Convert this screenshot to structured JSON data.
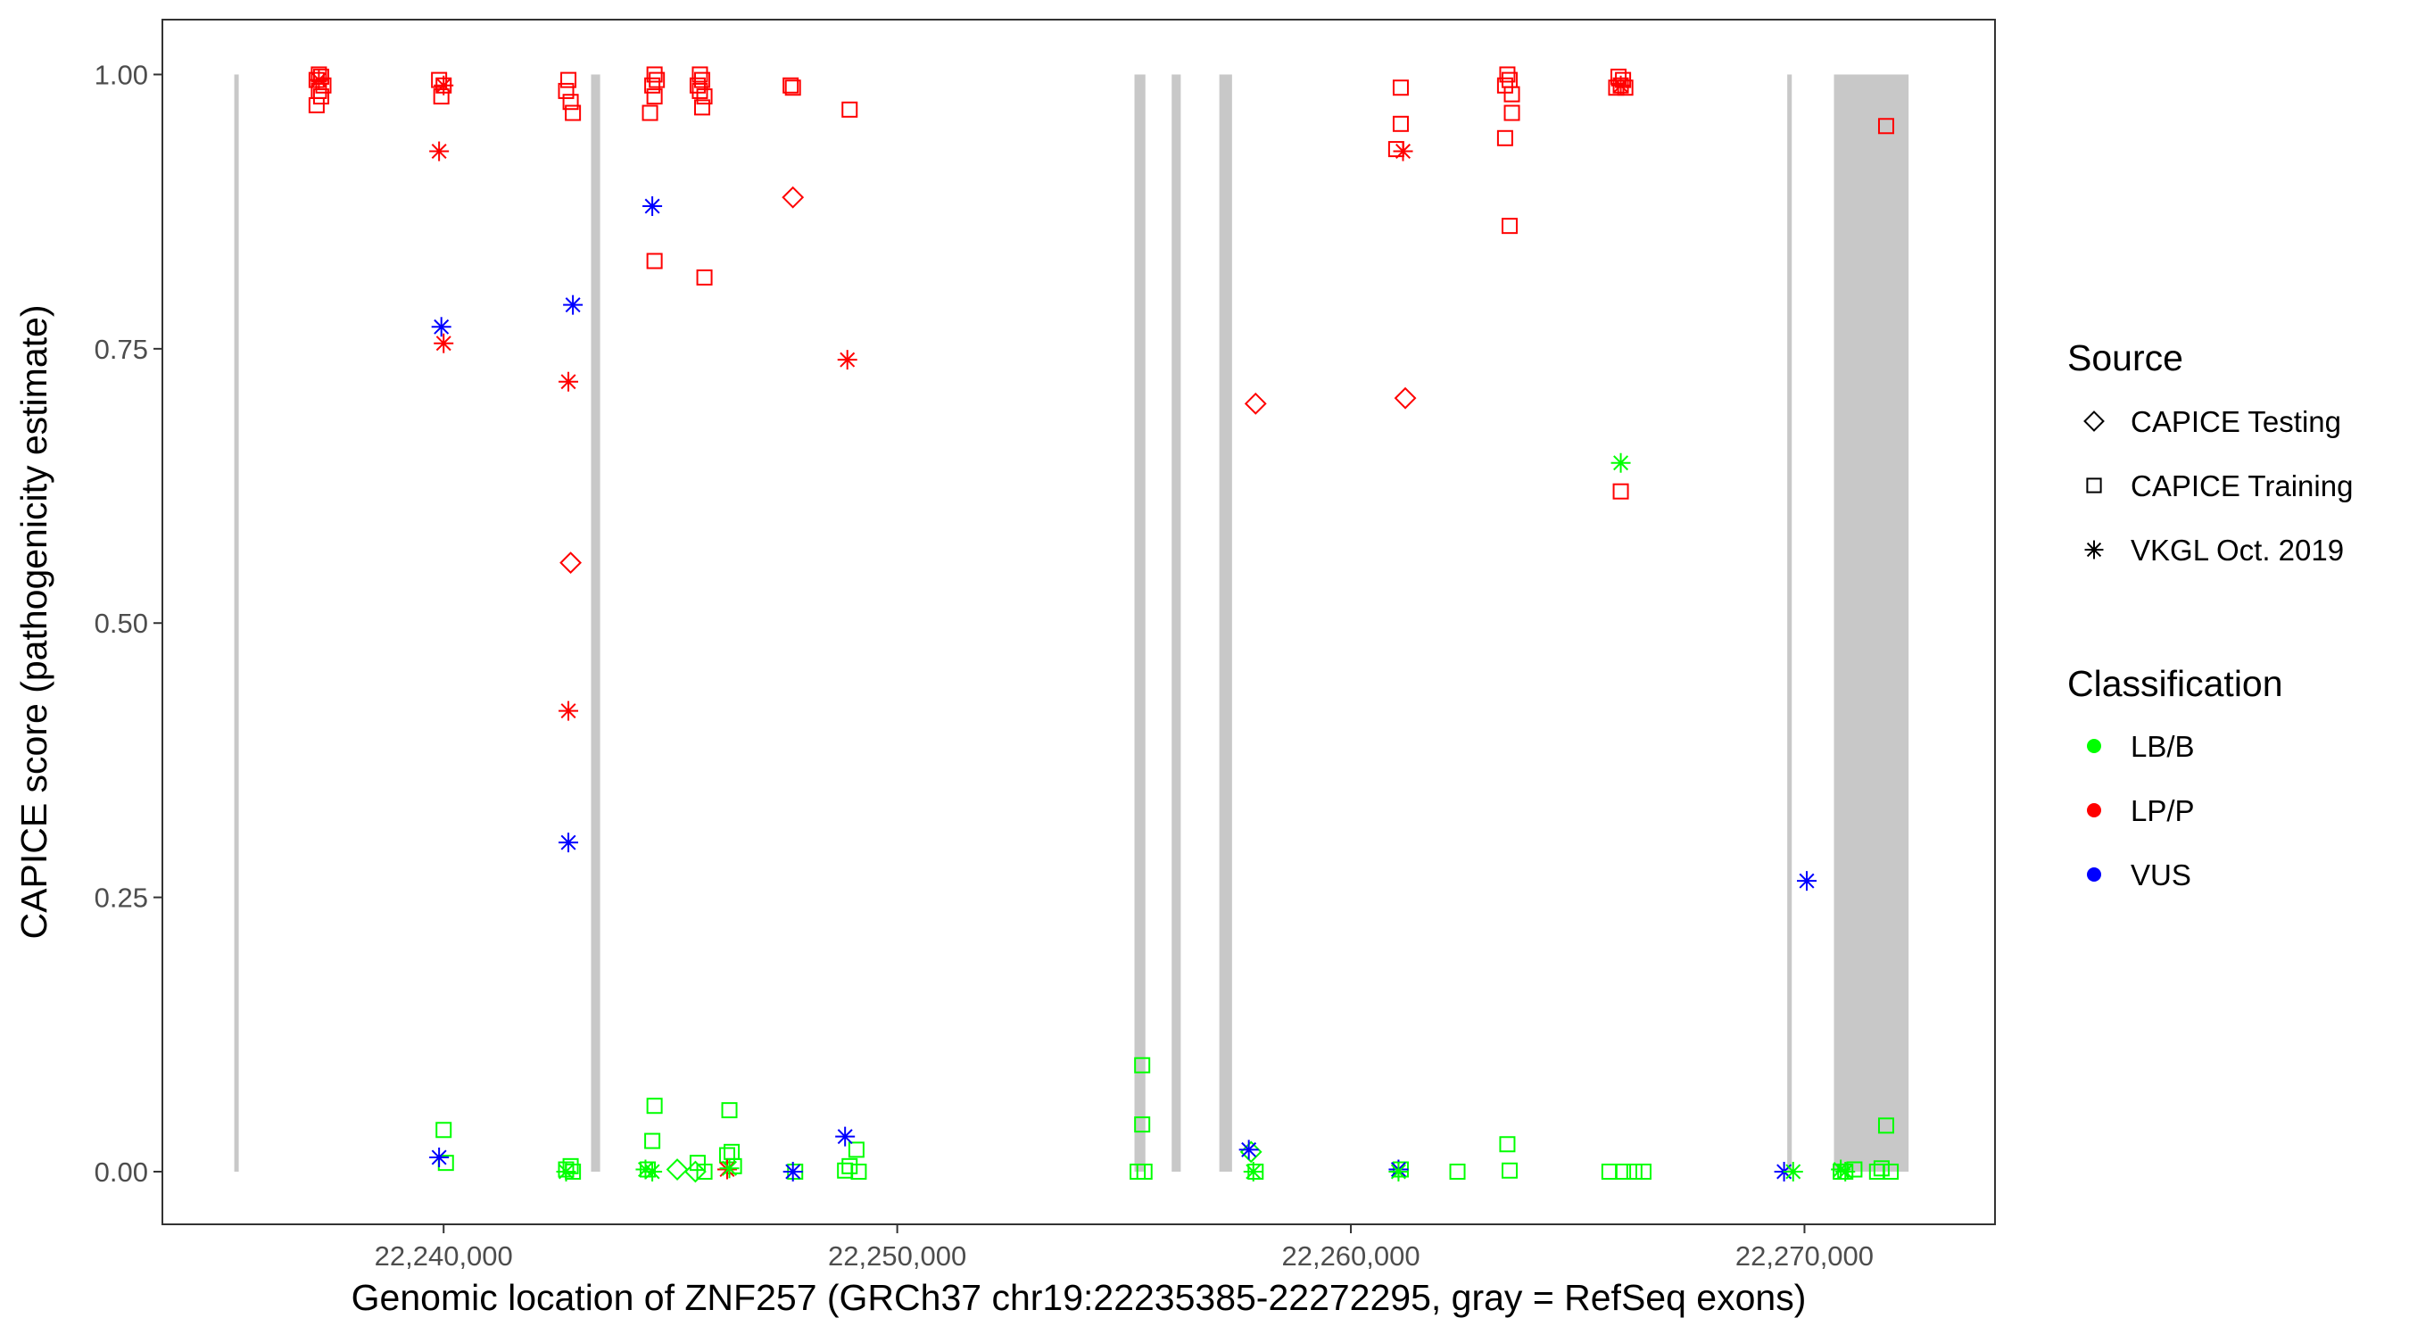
{
  "chart_data": {
    "type": "scatter",
    "title": "",
    "xlabel": "Genomic location of ZNF257 (GRCh37 chr19:22235385-22272295, gray = RefSeq exons)",
    "ylabel": "CAPICE score (pathogenicity estimate)",
    "xlim": [
      22233800,
      22274200
    ],
    "ylim": [
      -0.048,
      1.05
    ],
    "x_ticks": [
      {
        "value": 22240000,
        "label": "22,240,000"
      },
      {
        "value": 22250000,
        "label": "22,250,000"
      },
      {
        "value": 22260000,
        "label": "22,260,000"
      },
      {
        "value": 22270000,
        "label": "22,270,000"
      }
    ],
    "y_ticks": [
      {
        "value": 0.0,
        "label": "0.00"
      },
      {
        "value": 0.25,
        "label": "0.25"
      },
      {
        "value": 0.5,
        "label": "0.50"
      },
      {
        "value": 0.75,
        "label": "0.75"
      },
      {
        "value": 1.0,
        "label": "1.00"
      }
    ],
    "grid": false,
    "legend_position": "right",
    "exons": [
      [
        22235385,
        22235470
      ],
      [
        22243250,
        22243450
      ],
      [
        22255230,
        22255470
      ],
      [
        22256050,
        22256250
      ],
      [
        22257100,
        22257380
      ],
      [
        22269620,
        22269720
      ],
      [
        22270650,
        22272295
      ]
    ],
    "legend": {
      "source_title": "Source",
      "source_items": [
        {
          "label": "CAPICE Testing",
          "shape": "diamond"
        },
        {
          "label": "CAPICE Training",
          "shape": "square"
        },
        {
          "label": "VKGL Oct. 2019",
          "shape": "asterisk"
        }
      ],
      "class_title": "Classification",
      "class_items": [
        {
          "label": "LB/B",
          "color": "#00FF00"
        },
        {
          "label": "LP/P",
          "color": "#FF0000"
        },
        {
          "label": "VUS",
          "color": "#0000FF"
        }
      ]
    },
    "series": [
      {
        "shape": "square",
        "classification": "LP/P",
        "points": [
          [
            22237250,
            1.0
          ],
          [
            22237300,
            0.998
          ],
          [
            22237200,
            0.995
          ],
          [
            22237350,
            0.99
          ],
          [
            22237250,
            0.985
          ],
          [
            22237300,
            0.98
          ],
          [
            22237200,
            0.972
          ],
          [
            22239900,
            0.995
          ],
          [
            22240000,
            0.99
          ],
          [
            22239950,
            0.98
          ],
          [
            22242750,
            0.995
          ],
          [
            22242700,
            0.985
          ],
          [
            22242800,
            0.975
          ],
          [
            22242850,
            0.965
          ],
          [
            22244650,
            1.0
          ],
          [
            22244700,
            0.995
          ],
          [
            22244600,
            0.99
          ],
          [
            22244650,
            0.98
          ],
          [
            22244550,
            0.965
          ],
          [
            22244650,
            0.83
          ],
          [
            22245650,
            1.0
          ],
          [
            22245700,
            0.995
          ],
          [
            22245600,
            0.99
          ],
          [
            22245650,
            0.985
          ],
          [
            22245750,
            0.98
          ],
          [
            22245700,
            0.97
          ],
          [
            22245750,
            0.815
          ],
          [
            22247650,
            0.99
          ],
          [
            22247700,
            0.988
          ],
          [
            22248950,
            0.968
          ],
          [
            22261100,
            0.988
          ],
          [
            22261100,
            0.955
          ],
          [
            22261000,
            0.932
          ],
          [
            22263450,
            1.0
          ],
          [
            22263500,
            0.995
          ],
          [
            22263400,
            0.99
          ],
          [
            22263550,
            0.982
          ],
          [
            22263550,
            0.965
          ],
          [
            22263400,
            0.942
          ],
          [
            22263500,
            0.862
          ],
          [
            22265900,
            0.998
          ],
          [
            22266000,
            0.995
          ],
          [
            22265950,
            0.99
          ],
          [
            22266050,
            0.988
          ],
          [
            22265850,
            0.988
          ],
          [
            22265950,
            0.62
          ],
          [
            22271800,
            0.953
          ]
        ]
      },
      {
        "shape": "square",
        "classification": "LB/B",
        "points": [
          [
            22240000,
            0.038
          ],
          [
            22240050,
            0.008
          ],
          [
            22242700,
            0.002
          ],
          [
            22242800,
            0.005
          ],
          [
            22242850,
            0.0
          ],
          [
            22244650,
            0.06
          ],
          [
            22244600,
            0.028
          ],
          [
            22244500,
            0.002
          ],
          [
            22245600,
            0.008
          ],
          [
            22245750,
            0.0
          ],
          [
            22246300,
            0.056
          ],
          [
            22246350,
            0.018
          ],
          [
            22246250,
            0.015
          ],
          [
            22246400,
            0.005
          ],
          [
            22247750,
            0.0
          ],
          [
            22249100,
            0.02
          ],
          [
            22248950,
            0.005
          ],
          [
            22248850,
            0.001
          ],
          [
            22249150,
            0.0
          ],
          [
            22255400,
            0.097
          ],
          [
            22255400,
            0.043
          ],
          [
            22255300,
            0.0
          ],
          [
            22255450,
            0.0
          ],
          [
            22257900,
            0.0
          ],
          [
            22261100,
            0.002
          ],
          [
            22262350,
            0.0
          ],
          [
            22263450,
            0.025
          ],
          [
            22263500,
            0.001
          ],
          [
            22265700,
            0.0
          ],
          [
            22266000,
            0.0
          ],
          [
            22266250,
            0.0
          ],
          [
            22266450,
            0.0
          ],
          [
            22270900,
            0.0
          ],
          [
            22271100,
            0.002
          ],
          [
            22270800,
            0.0
          ],
          [
            22271800,
            0.042
          ],
          [
            22271700,
            0.003
          ],
          [
            22271900,
            0.0
          ],
          [
            22271600,
            0.0
          ]
        ]
      },
      {
        "shape": "diamond",
        "classification": "LP/P",
        "points": [
          [
            22242800,
            0.555
          ],
          [
            22247700,
            0.888
          ],
          [
            22257900,
            0.7
          ],
          [
            22261200,
            0.705
          ]
        ]
      },
      {
        "shape": "diamond",
        "classification": "LB/B",
        "points": [
          [
            22245150,
            0.002
          ],
          [
            22245550,
            0.0
          ],
          [
            22257800,
            0.018
          ]
        ]
      },
      {
        "shape": "asterisk",
        "classification": "LP/P",
        "points": [
          [
            22237250,
            0.995
          ],
          [
            22239900,
            0.93
          ],
          [
            22240000,
            0.99
          ],
          [
            22240000,
            0.755
          ],
          [
            22242750,
            0.72
          ],
          [
            22242750,
            0.42
          ],
          [
            22248900,
            0.74
          ],
          [
            22246250,
            0.002
          ],
          [
            22261150,
            0.93
          ],
          [
            22265950,
            0.99
          ]
        ]
      },
      {
        "shape": "asterisk",
        "classification": "VUS",
        "points": [
          [
            22239950,
            0.77
          ],
          [
            22239900,
            0.013
          ],
          [
            22242750,
            0.3
          ],
          [
            22242850,
            0.79
          ],
          [
            22244600,
            0.88
          ],
          [
            22248850,
            0.032
          ],
          [
            22247700,
            0.0
          ],
          [
            22257750,
            0.02
          ],
          [
            22261050,
            0.002
          ],
          [
            22269550,
            0.0
          ],
          [
            22270050,
            0.265
          ]
        ]
      },
      {
        "shape": "asterisk",
        "classification": "LB/B",
        "points": [
          [
            22242700,
            0.0
          ],
          [
            22244450,
            0.002
          ],
          [
            22244600,
            0.0
          ],
          [
            22246300,
            0.003
          ],
          [
            22257850,
            0.0
          ],
          [
            22261050,
            0.0
          ],
          [
            22265950,
            0.646
          ],
          [
            22269750,
            0.0
          ],
          [
            22270800,
            0.002
          ],
          [
            22270900,
            0.0
          ]
        ]
      }
    ]
  }
}
